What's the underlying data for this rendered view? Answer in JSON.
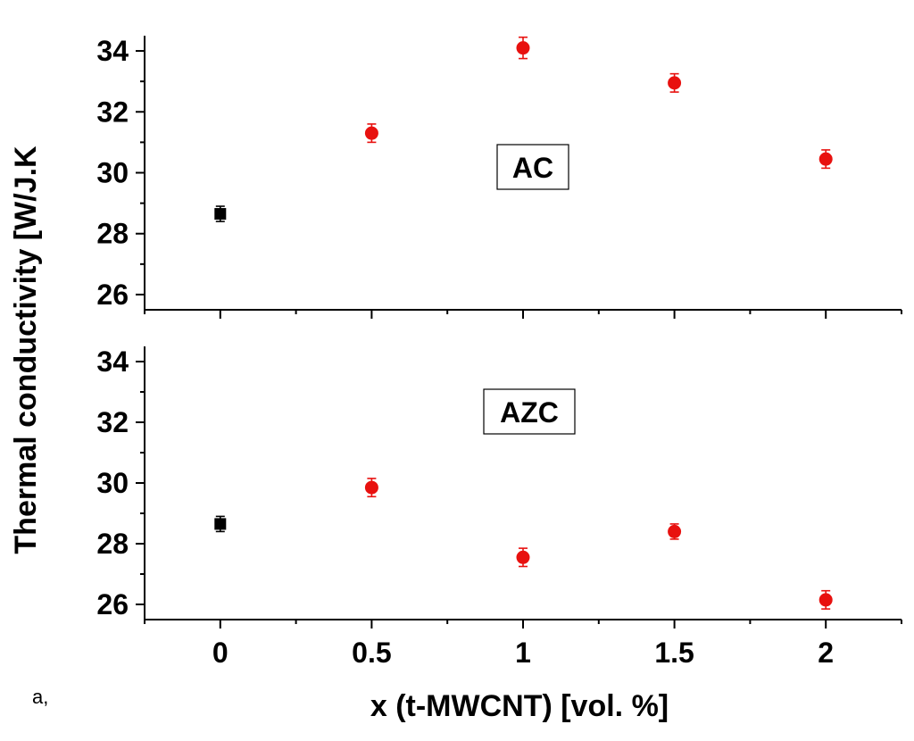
{
  "chart_data": {
    "type": "scatter",
    "ylabel": "Thermal conductivity [W/J.K",
    "xlabel": "x (t-MWCNT) [vol. %]",
    "figure_tag": "a,",
    "xlim": [
      -0.25,
      2.25
    ],
    "x_ticks": [
      0,
      0.5,
      1,
      1.5,
      2
    ],
    "x_tick_labels": [
      "0",
      "0.5",
      "1",
      "1.5",
      "2"
    ],
    "grid": false,
    "colors": {
      "reference": "#000000",
      "composite": "#e8110f"
    },
    "panels": [
      {
        "label": "AC",
        "ylim": [
          25.5,
          34.5
        ],
        "y_ticks": [
          26,
          28,
          30,
          32,
          34
        ],
        "y_tick_labels": [
          "26",
          "28",
          "30",
          "32",
          "34"
        ],
        "points": [
          {
            "x": 0,
            "y": 28.65,
            "err": 0.25,
            "marker": "square",
            "group": "reference"
          },
          {
            "x": 0.5,
            "y": 31.3,
            "err": 0.3,
            "marker": "circle",
            "group": "composite"
          },
          {
            "x": 1,
            "y": 34.1,
            "err": 0.35,
            "marker": "circle",
            "group": "composite"
          },
          {
            "x": 1.5,
            "y": 32.95,
            "err": 0.3,
            "marker": "circle",
            "group": "composite"
          },
          {
            "x": 2,
            "y": 30.45,
            "err": 0.3,
            "marker": "circle",
            "group": "composite"
          }
        ]
      },
      {
        "label": "AZC",
        "ylim": [
          25.5,
          34.5
        ],
        "y_ticks": [
          26,
          28,
          30,
          32,
          34
        ],
        "y_tick_labels": [
          "26",
          "28",
          "30",
          "32",
          "34"
        ],
        "points": [
          {
            "x": 0,
            "y": 28.65,
            "err": 0.25,
            "marker": "square",
            "group": "reference"
          },
          {
            "x": 0.5,
            "y": 29.85,
            "err": 0.3,
            "marker": "circle",
            "group": "composite"
          },
          {
            "x": 1,
            "y": 27.55,
            "err": 0.3,
            "marker": "circle",
            "group": "composite"
          },
          {
            "x": 1.5,
            "y": 28.4,
            "err": 0.25,
            "marker": "circle",
            "group": "composite"
          },
          {
            "x": 2,
            "y": 26.15,
            "err": 0.3,
            "marker": "circle",
            "group": "composite"
          }
        ]
      }
    ]
  }
}
